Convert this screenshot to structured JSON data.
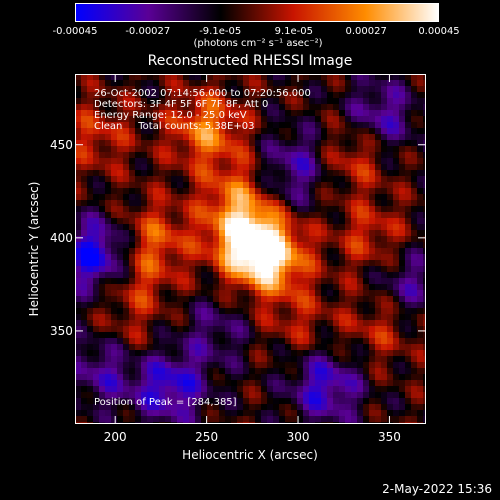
{
  "colorbar": {
    "tick_labels": [
      "-0.00045",
      "-0.00027",
      "-9.1e-05",
      "9.1e-05",
      "0.00027",
      "0.00045"
    ],
    "tick_values": [
      -0.00045,
      -0.00027,
      -9.1e-05,
      9.1e-05,
      0.00027,
      0.00045
    ],
    "range": [
      -0.00045,
      0.00045
    ],
    "unit": "(photons cm⁻² s⁻¹ asec⁻²)",
    "colors": [
      "#0000ff",
      "#5a0096",
      "#000000",
      "#c81400",
      "#ff8c00",
      "#ffffff"
    ]
  },
  "chart_data": {
    "type": "heatmap",
    "title": "Reconstructed RHESSI Image",
    "xlabel": "Heliocentric X (arcsec)",
    "ylabel": "Heliocentric Y (arcsec)",
    "xlim": [
      178,
      370
    ],
    "ylim": [
      300,
      488
    ],
    "x_ticks": [
      200,
      250,
      300,
      350
    ],
    "y_ticks": [
      350,
      400,
      450
    ],
    "peak": [
      284,
      385
    ],
    "sources": [
      {
        "x": 284,
        "y": 390,
        "value": 0.00045
      },
      {
        "x": 272,
        "y": 400,
        "value": 0.00038
      },
      {
        "x": 250,
        "y": 458,
        "value": 0.0003
      },
      {
        "x": 268,
        "y": 422,
        "value": 0.00025
      },
      {
        "x": 222,
        "y": 400,
        "value": 0.00022
      },
      {
        "x": 210,
        "y": 375,
        "value": 0.00018
      },
      {
        "x": 330,
        "y": 445,
        "value": 0.0002
      },
      {
        "x": 190,
        "y": 455,
        "value": 0.00016
      },
      {
        "x": 340,
        "y": 400,
        "value": 0.00017
      },
      {
        "x": 345,
        "y": 352,
        "value": 0.00015
      },
      {
        "x": 300,
        "y": 355,
        "value": 0.00012
      },
      {
        "x": 205,
        "y": 340,
        "value": 0.00014
      },
      {
        "x": 190,
        "y": 390,
        "value": -0.0004
      },
      {
        "x": 230,
        "y": 320,
        "value": -0.00032
      },
      {
        "x": 315,
        "y": 320,
        "value": -0.0003
      },
      {
        "x": 345,
        "y": 465,
        "value": -0.00025
      },
      {
        "x": 300,
        "y": 440,
        "value": -0.00022
      },
      {
        "x": 195,
        "y": 330,
        "value": -0.00028
      },
      {
        "x": 360,
        "y": 375,
        "value": -0.0002
      },
      {
        "x": 255,
        "y": 350,
        "value": -0.00015
      },
      {
        "x": 285,
        "y": 420,
        "value": -0.0001
      }
    ]
  },
  "info": {
    "line1": "26-Oct-2002 07:14:56.000 to 07:20:56.000",
    "line2": "Detectors: 3F 4F 5F 6F 7F 8F, Att 0",
    "line3": "Energy Range: 12.0 - 25.0 keV",
    "line4": "Clean     Total counts: 5.38E+03",
    "peak_text": "Position of Peak = [284,385]"
  },
  "timestamp": "2-May-2022 15:36"
}
